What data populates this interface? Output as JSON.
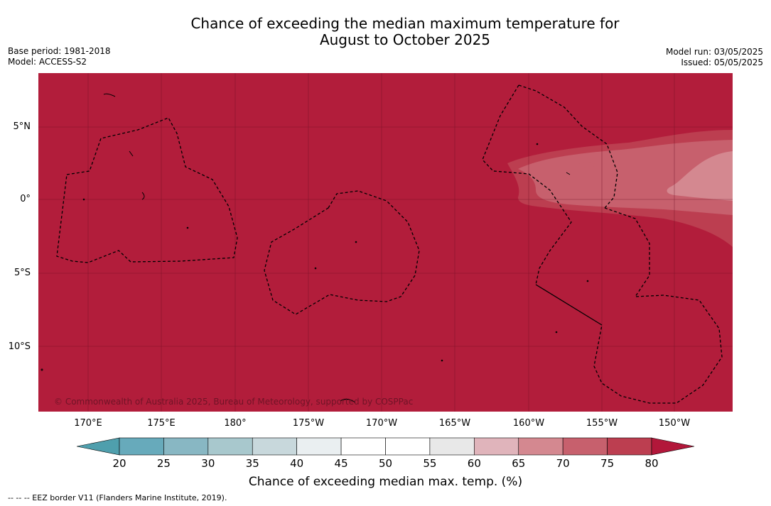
{
  "title": {
    "line1": "Chance of exceeding the median maximum temperature for",
    "line2": "August to October 2025"
  },
  "meta": {
    "base_period": "Base period: 1981-2018",
    "model": "Model: ACCESS-S2",
    "model_run": "Model run: 03/05/2025",
    "issued": "Issued: 05/05/2025"
  },
  "map": {
    "background_color": "#b21d3b",
    "lat_labels": [
      "5°N",
      "0°",
      "5°S",
      "10°S"
    ],
    "lon_labels": [
      "170°E",
      "175°E",
      "180°",
      "175°W",
      "170°W",
      "165°W",
      "160°W",
      "155°W",
      "150°W"
    ],
    "credit": "© Commonwealth of Australia 2025, Bureau of Meteorology, supported by COSPPac"
  },
  "colorbar": {
    "ticks": [
      "20",
      "25",
      "30",
      "35",
      "40",
      "45",
      "50",
      "55",
      "60",
      "65",
      "70",
      "75",
      "80"
    ],
    "colors": [
      "#67aabb",
      "#88b7c3",
      "#a8c8cd",
      "#c8d8dc",
      "#eaeff1",
      "#ffffff",
      "#ffffff",
      "#e8e8e8",
      "#e0b4bb",
      "#d48890",
      "#c7606d",
      "#bc3e50"
    ],
    "low_color": "#4f9fad",
    "high_color": "#b2173a",
    "title": "Chance of exceeding median max. temp. (%)"
  },
  "footer": "--  --  -- EEZ border V11 (Flanders Marine Institute, 2019)."
}
